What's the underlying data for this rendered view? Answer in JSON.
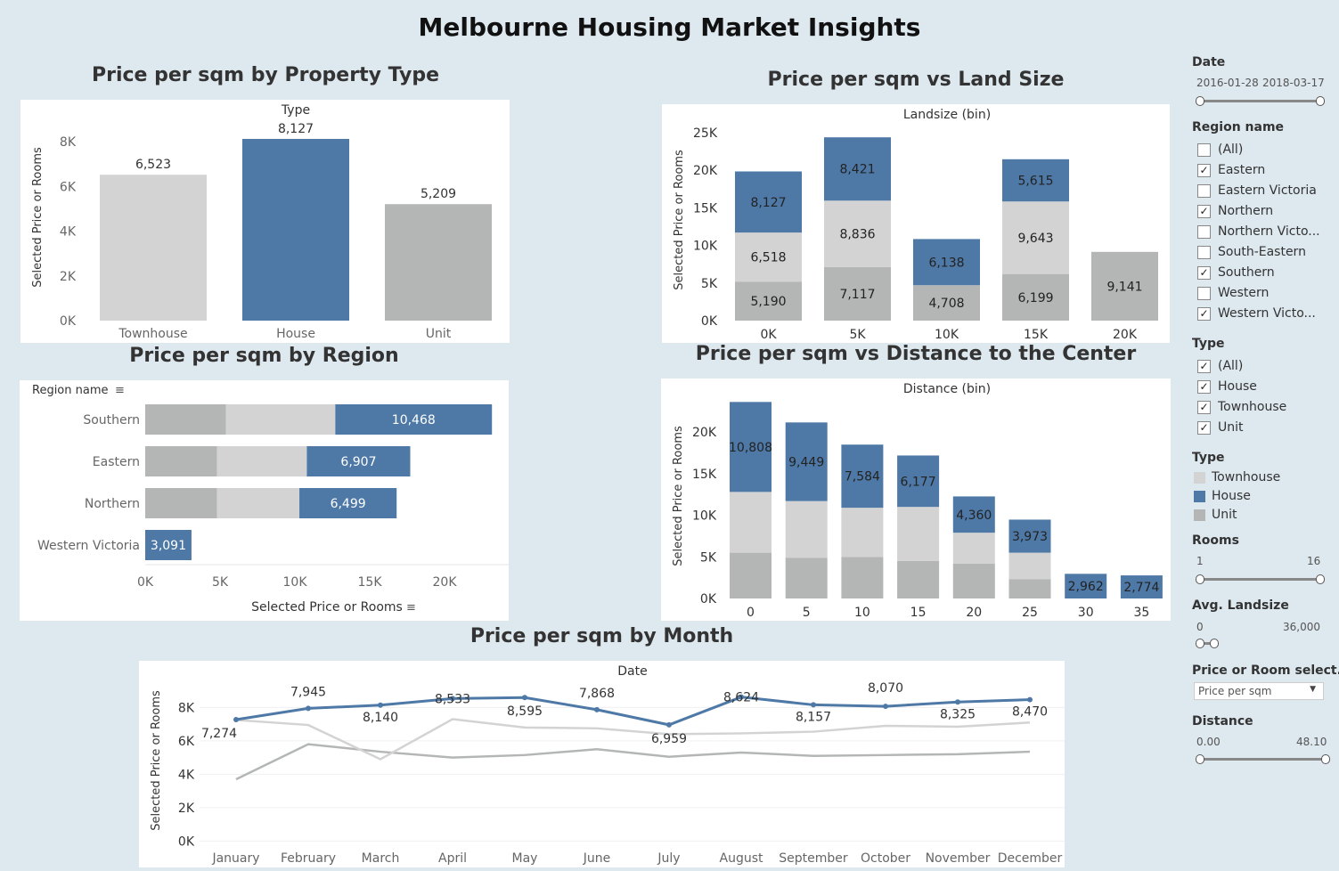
{
  "title": "Melbourne Housing Market Insights",
  "colors": {
    "townhouse": "#d3d3d3",
    "house": "#4e79a7",
    "unit": "#b4b6b6",
    "background": "#dde8ef"
  },
  "panels": {
    "type_chart": {
      "title": "Price per sqm by Property Type",
      "header": "Type",
      "ylabel": "Selected Price or Rooms"
    },
    "landsize_chart": {
      "title": "Price per sqm vs Land Size",
      "header": "Landsize (bin)",
      "ylabel": "Selected Price or Rooms"
    },
    "region_chart": {
      "title": "Price per sqm by Region",
      "header": "Region name",
      "xlabel": "Selected Price or Rooms"
    },
    "distance_chart": {
      "title": "Price per sqm vs Distance to the Center",
      "header": "Distance (bin)",
      "ylabel": "Selected Price or Rooms"
    },
    "month_chart": {
      "title": "Price per sqm by Month",
      "header": "Date",
      "ylabel": "Selected Price or Rooms"
    }
  },
  "chart_data": [
    {
      "type": "bar",
      "title": "Price per sqm by Property Type",
      "xlabel": "Type",
      "ylabel": "Selected Price or Rooms",
      "categories": [
        "Townhouse",
        "House",
        "Unit"
      ],
      "values": [
        6523,
        8127,
        5209
      ],
      "labels": [
        "6,523",
        "8,127",
        "5,209"
      ],
      "ylim": [
        0,
        9400
      ],
      "yticks": [
        "0K",
        "2K",
        "4K",
        "6K",
        "8K"
      ],
      "grid": false
    },
    {
      "type": "bar",
      "stacked": true,
      "title": "Price per sqm vs Land Size",
      "xlabel": "Landsize (bin)",
      "ylabel": "Selected Price or Rooms",
      "categories": [
        "0K",
        "5K",
        "10K",
        "15K",
        "20K"
      ],
      "series": [
        {
          "name": "Unit",
          "values": [
            5190,
            7117,
            4708,
            6199,
            9141
          ],
          "labels": [
            "5,190",
            "7,117",
            "4,708",
            "6,199",
            "9,141"
          ]
        },
        {
          "name": "Townhouse",
          "values": [
            6518,
            8836,
            0,
            9643,
            0
          ],
          "labels": [
            "6,518",
            "8,836",
            "",
            "9,643",
            ""
          ]
        },
        {
          "name": "House",
          "values": [
            8127,
            8421,
            6138,
            5615,
            0
          ],
          "labels": [
            "8,127",
            "8,421",
            "6,138",
            "5,615",
            ""
          ]
        }
      ],
      "ylim": [
        0,
        27000
      ],
      "yticks": [
        "0K",
        "5K",
        "10K",
        "15K",
        "20K",
        "25K"
      ]
    },
    {
      "type": "bar",
      "orientation": "horizontal",
      "stacked": true,
      "title": "Price per sqm by Region",
      "ylabel": "Region name",
      "xlabel": "Selected Price or Rooms",
      "categories": [
        "Southern",
        "Eastern",
        "Northern",
        "Western Victoria"
      ],
      "series": [
        {
          "name": "Unit",
          "values": [
            5400,
            4800,
            4800,
            0
          ]
        },
        {
          "name": "Townhouse",
          "values": [
            7300,
            6000,
            5500,
            0
          ]
        },
        {
          "name": "House",
          "values": [
            10468,
            6907,
            6499,
            3091
          ],
          "labels": [
            "10,468",
            "6,907",
            "6,499",
            "3,091"
          ]
        }
      ],
      "xlim": [
        0,
        24000
      ],
      "xticks": [
        "0K",
        "5K",
        "10K",
        "15K",
        "20K"
      ]
    },
    {
      "type": "bar",
      "stacked": true,
      "title": "Price per sqm vs Distance to the Center",
      "xlabel": "Distance (bin)",
      "ylabel": "Selected Price or Rooms",
      "categories": [
        "0",
        "5",
        "10",
        "15",
        "20",
        "25",
        "30",
        "35"
      ],
      "series": [
        {
          "name": "Unit",
          "values": [
            5500,
            4900,
            5000,
            4500,
            4200,
            2300,
            0,
            0
          ]
        },
        {
          "name": "Townhouse",
          "values": [
            7300,
            6800,
            5900,
            6500,
            3700,
            3200,
            0,
            0
          ]
        },
        {
          "name": "House",
          "values": [
            10808,
            9449,
            7584,
            6177,
            4360,
            3973,
            2962,
            2774
          ],
          "labels": [
            "10,808",
            "9,449",
            "7,584",
            "6,177",
            "4,360",
            "3,973",
            "2,962",
            "2,774"
          ]
        }
      ],
      "ylim": [
        0,
        24500
      ],
      "yticks": [
        "0K",
        "5K",
        "10K",
        "15K",
        "20K"
      ]
    },
    {
      "type": "line",
      "title": "Price per sqm by Month",
      "xlabel": "Date",
      "ylabel": "Selected Price or Rooms",
      "categories": [
        "January",
        "February",
        "March",
        "April",
        "May",
        "June",
        "July",
        "August",
        "September",
        "October",
        "November",
        "December"
      ],
      "series": [
        {
          "name": "House",
          "values": [
            7274,
            7945,
            8140,
            8533,
            8595,
            7868,
            6959,
            8624,
            8157,
            8070,
            8325,
            8470
          ],
          "labels": [
            "7,274",
            "7,945",
            "8,140",
            "8,533",
            "8,595",
            "7,868",
            "6,959",
            "8,624",
            "8,157",
            "8,070",
            "8,325",
            "8,470"
          ]
        },
        {
          "name": "Townhouse",
          "values": [
            7250,
            6950,
            4900,
            7300,
            6800,
            6750,
            6400,
            6450,
            6550,
            6900,
            6850,
            7100
          ]
        },
        {
          "name": "Unit",
          "values": [
            3700,
            5800,
            5350,
            5000,
            5150,
            5500,
            5050,
            5300,
            5100,
            5150,
            5200,
            5350
          ]
        }
      ],
      "ylim": [
        -300,
        9300
      ],
      "yticks": [
        "0K",
        "2K",
        "4K",
        "6K",
        "8K"
      ]
    }
  ],
  "sidebar": {
    "date": {
      "label": "Date",
      "from": "2016-01-28",
      "to": "2018-03-17"
    },
    "region": {
      "label": "Region name",
      "items": [
        {
          "label": "(All)",
          "checked": false
        },
        {
          "label": "Eastern",
          "checked": true
        },
        {
          "label": "Eastern Victoria",
          "checked": false
        },
        {
          "label": "Northern",
          "checked": true
        },
        {
          "label": "Northern Victo...",
          "checked": false
        },
        {
          "label": "South-Eastern",
          "checked": false
        },
        {
          "label": "Southern",
          "checked": true
        },
        {
          "label": "Western",
          "checked": false
        },
        {
          "label": "Western Victo...",
          "checked": true
        }
      ]
    },
    "type_filter": {
      "label": "Type",
      "items": [
        {
          "label": "(All)",
          "checked": true
        },
        {
          "label": "House",
          "checked": true
        },
        {
          "label": "Townhouse",
          "checked": true
        },
        {
          "label": "Unit",
          "checked": true
        }
      ]
    },
    "type_legend": {
      "label": "Type",
      "items": [
        {
          "label": "Townhouse",
          "color": "#d3d3d3"
        },
        {
          "label": "House",
          "color": "#4e79a7"
        },
        {
          "label": "Unit",
          "color": "#b4b6b6"
        }
      ]
    },
    "rooms": {
      "label": "Rooms",
      "min": "1",
      "max": "16"
    },
    "landsize": {
      "label": "Avg. Landsize",
      "min": "0",
      "max": "36,000"
    },
    "price_select": {
      "label": "Price or Room select..",
      "value": "Price per sqm"
    },
    "distance": {
      "label": "Distance",
      "min": "0.00",
      "max": "48.10"
    }
  }
}
